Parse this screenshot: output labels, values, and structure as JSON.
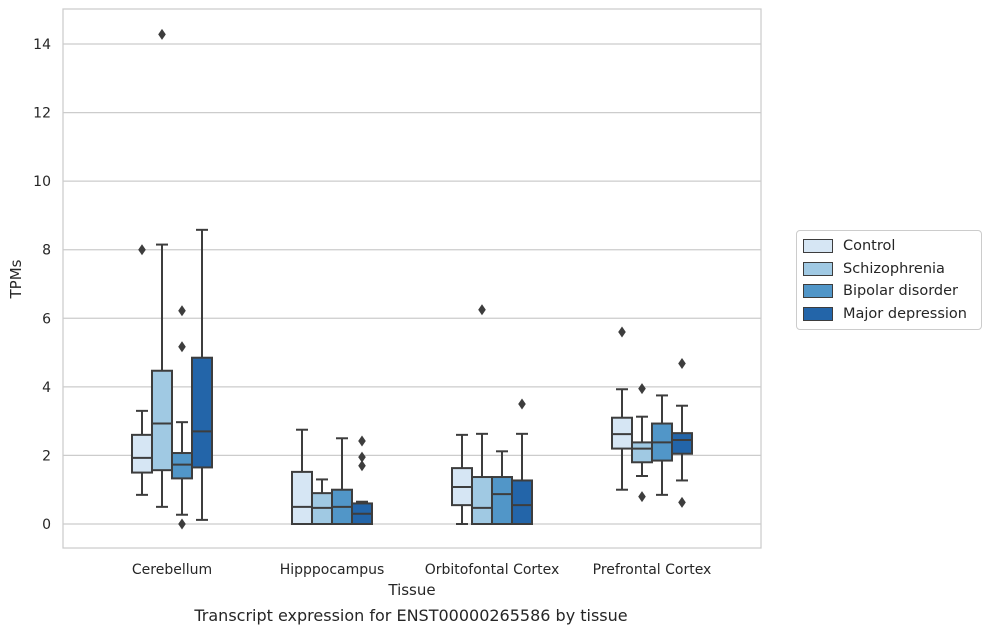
{
  "chart_data": {
    "type": "boxplot",
    "xlabel": "Tissue",
    "ylabel": "TPMs",
    "caption": "Transcript expression for ENST00000265586 by tissue",
    "ylim": [
      -0.7,
      15
    ],
    "yticks": [
      0,
      2,
      4,
      6,
      8,
      10,
      12,
      14
    ],
    "grid": true,
    "legend_position": "right",
    "categories": [
      "Cerebellum",
      "Hipppocampus",
      "Orbitofontal Cortex",
      "Prefrontal Cortex"
    ],
    "series": [
      {
        "name": "Control",
        "color": "#d6e6f4",
        "boxes": [
          {
            "whislo": 0.85,
            "q1": 1.5,
            "med": 1.93,
            "q3": 2.6,
            "whishi": 3.3,
            "fliers": [
              8.0
            ]
          },
          {
            "whislo": 0.0,
            "q1": 0.0,
            "med": 0.5,
            "q3": 1.52,
            "whishi": 2.75,
            "fliers": []
          },
          {
            "whislo": 0.0,
            "q1": 0.55,
            "med": 1.08,
            "q3": 1.63,
            "whishi": 2.6,
            "fliers": []
          },
          {
            "whislo": 1.0,
            "q1": 2.2,
            "med": 2.62,
            "q3": 3.1,
            "whishi": 3.93,
            "fliers": [
              5.6
            ]
          }
        ]
      },
      {
        "name": "Schizophrenia",
        "color": "#a0c9e3",
        "boxes": [
          {
            "whislo": 0.5,
            "q1": 1.57,
            "med": 2.93,
            "q3": 4.47,
            "whishi": 8.15,
            "fliers": [
              14.28
            ]
          },
          {
            "whislo": 0.0,
            "q1": 0.0,
            "med": 0.47,
            "q3": 0.9,
            "whishi": 1.3,
            "fliers": []
          },
          {
            "whislo": 0.0,
            "q1": 0.0,
            "med": 0.47,
            "q3": 1.37,
            "whishi": 2.63,
            "fliers": [
              6.25
            ]
          },
          {
            "whislo": 1.4,
            "q1": 1.8,
            "med": 2.2,
            "q3": 2.38,
            "whishi": 3.13,
            "fliers": [
              0.8,
              3.95
            ]
          }
        ]
      },
      {
        "name": "Bipolar disorder",
        "color": "#5196c8",
        "boxes": [
          {
            "whislo": 0.27,
            "q1": 1.33,
            "med": 1.73,
            "q3": 2.07,
            "whishi": 2.97,
            "fliers": [
              0.0,
              5.17,
              6.22
            ]
          },
          {
            "whislo": 0.0,
            "q1": 0.0,
            "med": 0.5,
            "q3": 1.0,
            "whishi": 2.5,
            "fliers": []
          },
          {
            "whislo": 0.0,
            "q1": 0.0,
            "med": 0.87,
            "q3": 1.37,
            "whishi": 2.12,
            "fliers": []
          },
          {
            "whislo": 0.85,
            "q1": 1.85,
            "med": 2.38,
            "q3": 2.93,
            "whishi": 3.75,
            "fliers": []
          }
        ]
      },
      {
        "name": "Major depression",
        "color": "#2365a9",
        "boxes": [
          {
            "whislo": 0.12,
            "q1": 1.65,
            "med": 2.7,
            "q3": 4.85,
            "whishi": 8.58,
            "fliers": []
          },
          {
            "whislo": 0.0,
            "q1": 0.0,
            "med": 0.3,
            "q3": 0.6,
            "whishi": 0.65,
            "fliers": [
              1.7,
              1.95,
              2.42
            ]
          },
          {
            "whislo": 0.0,
            "q1": 0.0,
            "med": 0.55,
            "q3": 1.27,
            "whishi": 2.63,
            "fliers": [
              3.5
            ]
          },
          {
            "whislo": 1.27,
            "q1": 2.05,
            "med": 2.45,
            "q3": 2.65,
            "whishi": 3.45,
            "fliers": [
              0.63,
              4.68
            ]
          }
        ]
      }
    ]
  }
}
